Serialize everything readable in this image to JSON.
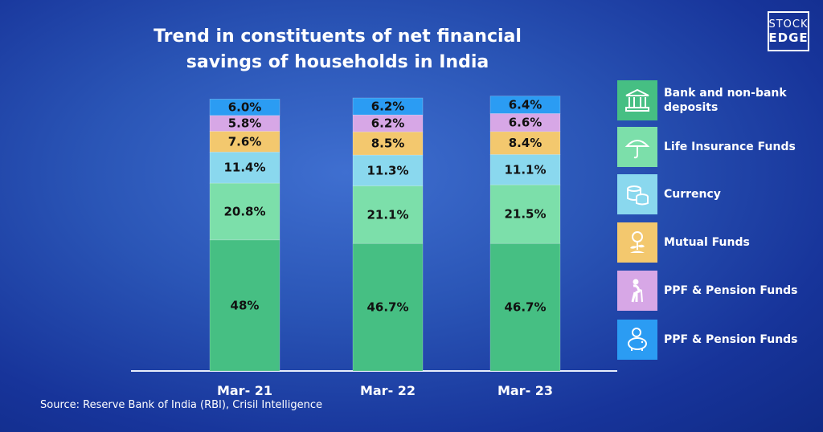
{
  "title": {
    "line1": "Trend in constituents of net financial",
    "line2": "savings of households in India"
  },
  "logo": {
    "line1": "STOCK",
    "line2": "EDGE"
  },
  "source": "Source: Reserve Bank of India (RBI), Crisil Intelligence",
  "colors": {
    "bank": "#46bf83",
    "insurance": "#7cdfaa",
    "currency": "#8ad8ee",
    "mutual": "#f3c86e",
    "ppf": "#d7a7e6",
    "other": "#2b9cf3"
  },
  "legend": [
    {
      "label": "Bank and non-bank deposits",
      "icon": "bank-icon",
      "color": "#46bf83"
    },
    {
      "label": "Life Insurance Funds",
      "icon": "umbrella-icon",
      "color": "#7cdfaa"
    },
    {
      "label": "Currency",
      "icon": "coins-icon",
      "color": "#8ad8ee"
    },
    {
      "label": "Mutual Funds",
      "icon": "money-plant-icon",
      "color": "#f3c86e"
    },
    {
      "label": "PPF & Pension Funds",
      "icon": "elderly-person-icon",
      "color": "#d7a7e6"
    },
    {
      "label": "PPF & Pension Funds",
      "icon": "piggy-bank-icon",
      "color": "#2b9cf3"
    }
  ],
  "chart_data": {
    "type": "bar",
    "stacked": true,
    "title": "Trend in constituents of net financial savings of households in India",
    "categories": [
      "Mar- 21",
      "Mar- 22",
      "Mar- 23"
    ],
    "series": [
      {
        "name": "Bank and non-bank deposits",
        "values": [
          48,
          46.7,
          46.7
        ],
        "labels": [
          "48%",
          "46.7%",
          "46.7%"
        ],
        "color": "#46bf83"
      },
      {
        "name": "Life Insurance Funds",
        "values": [
          20.8,
          21.1,
          21.5
        ],
        "labels": [
          "20.8%",
          "21.1%",
          "21.5%"
        ],
        "color": "#7cdfaa"
      },
      {
        "name": "Currency",
        "values": [
          11.4,
          11.3,
          11.1
        ],
        "labels": [
          "11.4%",
          "11.3%",
          "11.1%"
        ],
        "color": "#8ad8ee"
      },
      {
        "name": "Mutual Funds",
        "values": [
          7.6,
          8.5,
          8.4
        ],
        "labels": [
          "7.6%",
          "8.5%",
          "8.4%"
        ],
        "color": "#f3c86e"
      },
      {
        "name": "PPF & Pension Funds",
        "values": [
          5.8,
          6.2,
          6.6
        ],
        "labels": [
          "5.8%",
          "6.2%",
          "6.6%"
        ],
        "color": "#d7a7e6"
      },
      {
        "name": "PPF & Pension Funds",
        "values": [
          6.0,
          6.2,
          6.4
        ],
        "labels": [
          "6.0%",
          "6.2%",
          "6.4%"
        ],
        "color": "#2b9cf3"
      }
    ],
    "xlabel": "",
    "ylabel": "",
    "ylim": [
      0,
      100
    ],
    "legend_position": "right"
  }
}
